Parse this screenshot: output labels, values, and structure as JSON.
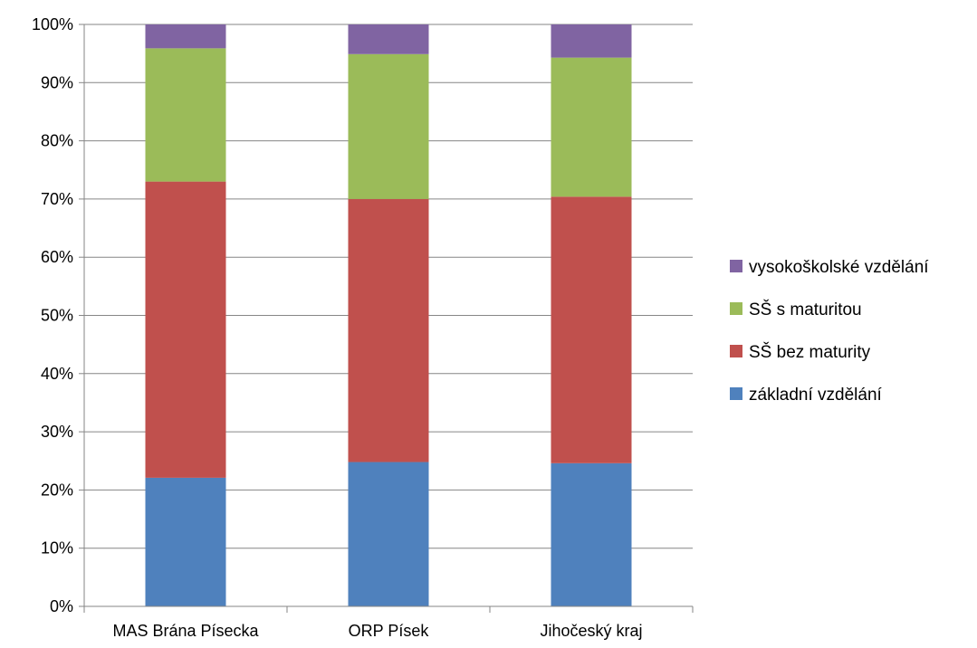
{
  "chart_data": {
    "type": "bar",
    "stacked": true,
    "percent": true,
    "categories": [
      "MAS Brána Písecka",
      "ORP Písek",
      "Jihočeský kraj"
    ],
    "series": [
      {
        "name": "základní vzdělání",
        "color": "#4F81BD",
        "values": [
          22.1,
          24.8,
          24.6
        ]
      },
      {
        "name": "SŠ bez maturity",
        "color": "#C0504D",
        "values": [
          50.9,
          45.2,
          45.8
        ]
      },
      {
        "name": "SŠ s maturitou",
        "color": "#9BBB59",
        "values": [
          22.9,
          24.9,
          23.9
        ]
      },
      {
        "name": "vysokoškolské vzdělání",
        "color": "#8064A2",
        "values": [
          4.1,
          5.1,
          5.7
        ]
      }
    ],
    "ylim": [
      0,
      100
    ],
    "yticks": [
      "0%",
      "10%",
      "20%",
      "30%",
      "40%",
      "50%",
      "60%",
      "70%",
      "80%",
      "90%",
      "100%"
    ],
    "grid": true,
    "legend_position": "right",
    "legend_order": [
      "vysokoškolské vzdělání",
      "SŠ s maturitou",
      "SŠ bez maturity",
      "základní vzdělání"
    ]
  }
}
